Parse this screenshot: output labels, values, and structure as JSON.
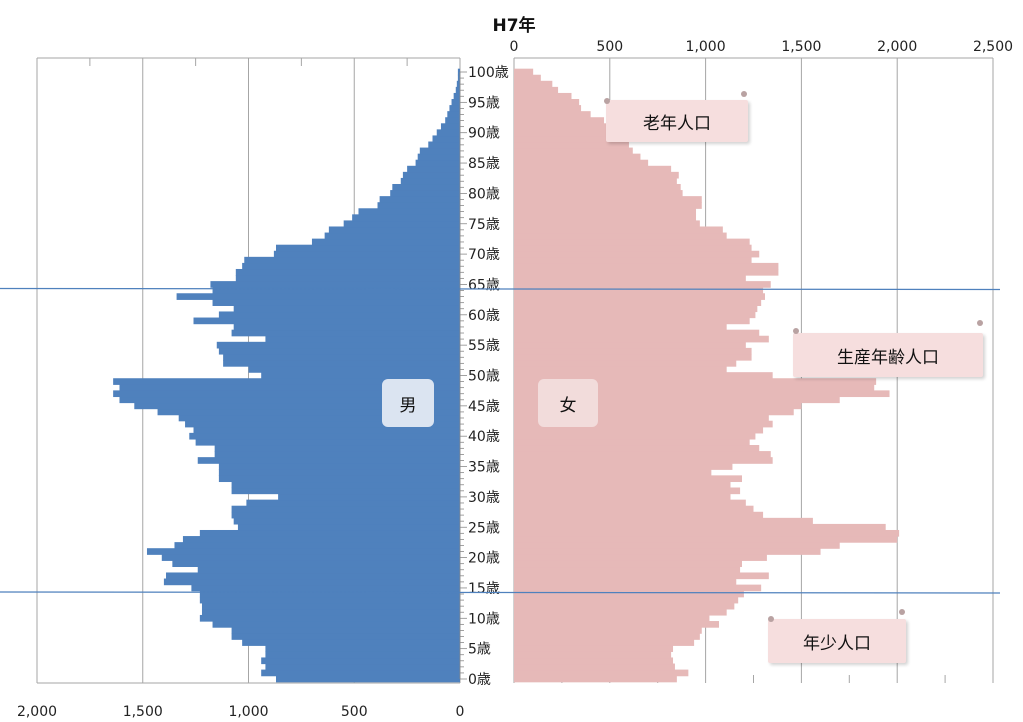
{
  "chart_data": {
    "type": "bar",
    "orientation": "horizontal-population-pyramid",
    "title": "H7年",
    "left_axis": {
      "ticks": [
        "2,000",
        "1,500",
        "1,000",
        "500",
        "0"
      ],
      "range": [
        0,
        2000
      ]
    },
    "right_axis": {
      "ticks": [
        "0",
        "500",
        "1,000",
        "1,500",
        "2,000",
        "2,500"
      ],
      "range": [
        0,
        2500
      ]
    },
    "age_labels": [
      "0歳",
      "5歳",
      "10歳",
      "15歳",
      "20歳",
      "25歳",
      "30歳",
      "35歳",
      "40歳",
      "45歳",
      "50歳",
      "55歳",
      "60歳",
      "65歳",
      "70歳",
      "75歳",
      "80歳",
      "85歳",
      "90歳",
      "95歳",
      "100歳"
    ],
    "ages": [
      0,
      1,
      2,
      3,
      4,
      5,
      6,
      7,
      8,
      9,
      10,
      11,
      12,
      13,
      14,
      15,
      16,
      17,
      18,
      19,
      20,
      21,
      22,
      23,
      24,
      25,
      26,
      27,
      28,
      29,
      30,
      31,
      32,
      33,
      34,
      35,
      36,
      37,
      38,
      39,
      40,
      41,
      42,
      43,
      44,
      45,
      46,
      47,
      48,
      49,
      50,
      51,
      52,
      53,
      54,
      55,
      56,
      57,
      58,
      59,
      60,
      61,
      62,
      63,
      64,
      65,
      66,
      67,
      68,
      69,
      70,
      71,
      72,
      73,
      74,
      75,
      76,
      77,
      78,
      79,
      80,
      81,
      82,
      83,
      84,
      85,
      86,
      87,
      88,
      89,
      90,
      91,
      92,
      93,
      94,
      95,
      96,
      97,
      98,
      99,
      100
    ],
    "series": [
      {
        "name": "男",
        "color": "#4f81bd",
        "values": [
          870,
          940,
          920,
          940,
          920,
          920,
          1030,
          1080,
          1080,
          1170,
          1230,
          1220,
          1220,
          1230,
          1230,
          1270,
          1400,
          1390,
          1240,
          1360,
          1410,
          1480,
          1350,
          1310,
          1230,
          1050,
          1070,
          1080,
          1080,
          1010,
          860,
          1080,
          1080,
          1140,
          1140,
          1140,
          1240,
          1160,
          1160,
          1250,
          1280,
          1260,
          1300,
          1330,
          1430,
          1540,
          1610,
          1640,
          1610,
          1640,
          940,
          1000,
          1120,
          1120,
          1140,
          1150,
          920,
          1080,
          1070,
          1260,
          1140,
          1070,
          1170,
          1340,
          1170,
          1180,
          1060,
          1060,
          1030,
          1020,
          880,
          870,
          700,
          640,
          620,
          550,
          510,
          480,
          390,
          380,
          330,
          320,
          280,
          270,
          250,
          210,
          200,
          190,
          150,
          130,
          110,
          90,
          70,
          60,
          50,
          40,
          30,
          20,
          15,
          10,
          10
        ]
      },
      {
        "name": "女",
        "color": "#e6b9b8",
        "values": [
          850,
          910,
          840,
          830,
          820,
          830,
          940,
          970,
          980,
          1070,
          1020,
          1110,
          1150,
          1170,
          1200,
          1290,
          1160,
          1330,
          1180,
          1190,
          1320,
          1600,
          1700,
          2000,
          2010,
          1940,
          1560,
          1300,
          1250,
          1210,
          1130,
          1180,
          1130,
          1190,
          1030,
          1140,
          1350,
          1340,
          1280,
          1230,
          1260,
          1300,
          1350,
          1330,
          1460,
          1500,
          1700,
          1960,
          1880,
          1890,
          1350,
          1110,
          1160,
          1240,
          1240,
          1210,
          1330,
          1280,
          1110,
          1230,
          1260,
          1270,
          1290,
          1310,
          1300,
          1340,
          1210,
          1380,
          1380,
          1240,
          1280,
          1240,
          1230,
          1110,
          1090,
          970,
          950,
          950,
          980,
          980,
          880,
          870,
          850,
          860,
          820,
          700,
          660,
          620,
          600,
          580,
          540,
          510,
          470,
          400,
          350,
          340,
          300,
          230,
          200,
          140,
          100
        ]
      }
    ],
    "zone_lines_at_age": [
      14.5,
      64.5
    ]
  },
  "labels": {
    "male": "男",
    "female": "女",
    "elderly": "老年人口",
    "working": "生産年齢人口",
    "youth": "年少人口"
  },
  "colors": {
    "male_bar": "#4f81bd",
    "female_bar": "#e6b9b8",
    "grid": "#a6a6a6",
    "zone_line": "#4f81bd",
    "callout_bg": "#f6dede",
    "sex_label_bg": "#dbe4f1"
  }
}
